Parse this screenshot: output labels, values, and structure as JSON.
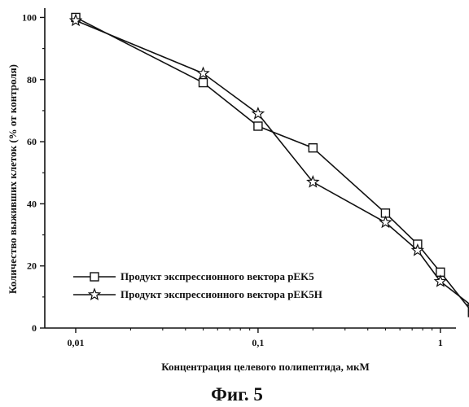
{
  "chart_data": {
    "type": "line",
    "xscale": "log",
    "xlim": [
      0.01,
      1.8
    ],
    "ylim": [
      0,
      103
    ],
    "xticks": [
      {
        "value": 0.01,
        "label": "0,01"
      },
      {
        "value": 0.1,
        "label": "0,1"
      },
      {
        "value": 1,
        "label": "1"
      }
    ],
    "yticks": [
      {
        "value": 0,
        "label": "0"
      },
      {
        "value": 20,
        "label": "20"
      },
      {
        "value": 40,
        "label": "40"
      },
      {
        "value": 60,
        "label": "60"
      },
      {
        "value": 80,
        "label": "80"
      },
      {
        "value": 100,
        "label": "100"
      }
    ],
    "xlabel": "Концентрация целевого полипептида, мкМ",
    "ylabel": "Количество выживших клеток (% от контроля)",
    "legend_position": "bottom-left",
    "series": [
      {
        "name": "Продукт экспрессионного вектора pEK5",
        "marker": "square",
        "x": [
          0.01,
          0.05,
          0.1,
          0.2,
          0.5,
          0.75,
          1.0,
          1.5
        ],
        "y": [
          100,
          79,
          65,
          58,
          37,
          27,
          18,
          5
        ]
      },
      {
        "name": "Продукт экспрессионного вектора pEK5H",
        "marker": "star",
        "x": [
          0.01,
          0.05,
          0.1,
          0.2,
          0.5,
          0.75,
          1.0,
          1.5
        ],
        "y": [
          99,
          82,
          69,
          47,
          34,
          25,
          15,
          7
        ]
      }
    ]
  },
  "caption": "Фиг. 5"
}
